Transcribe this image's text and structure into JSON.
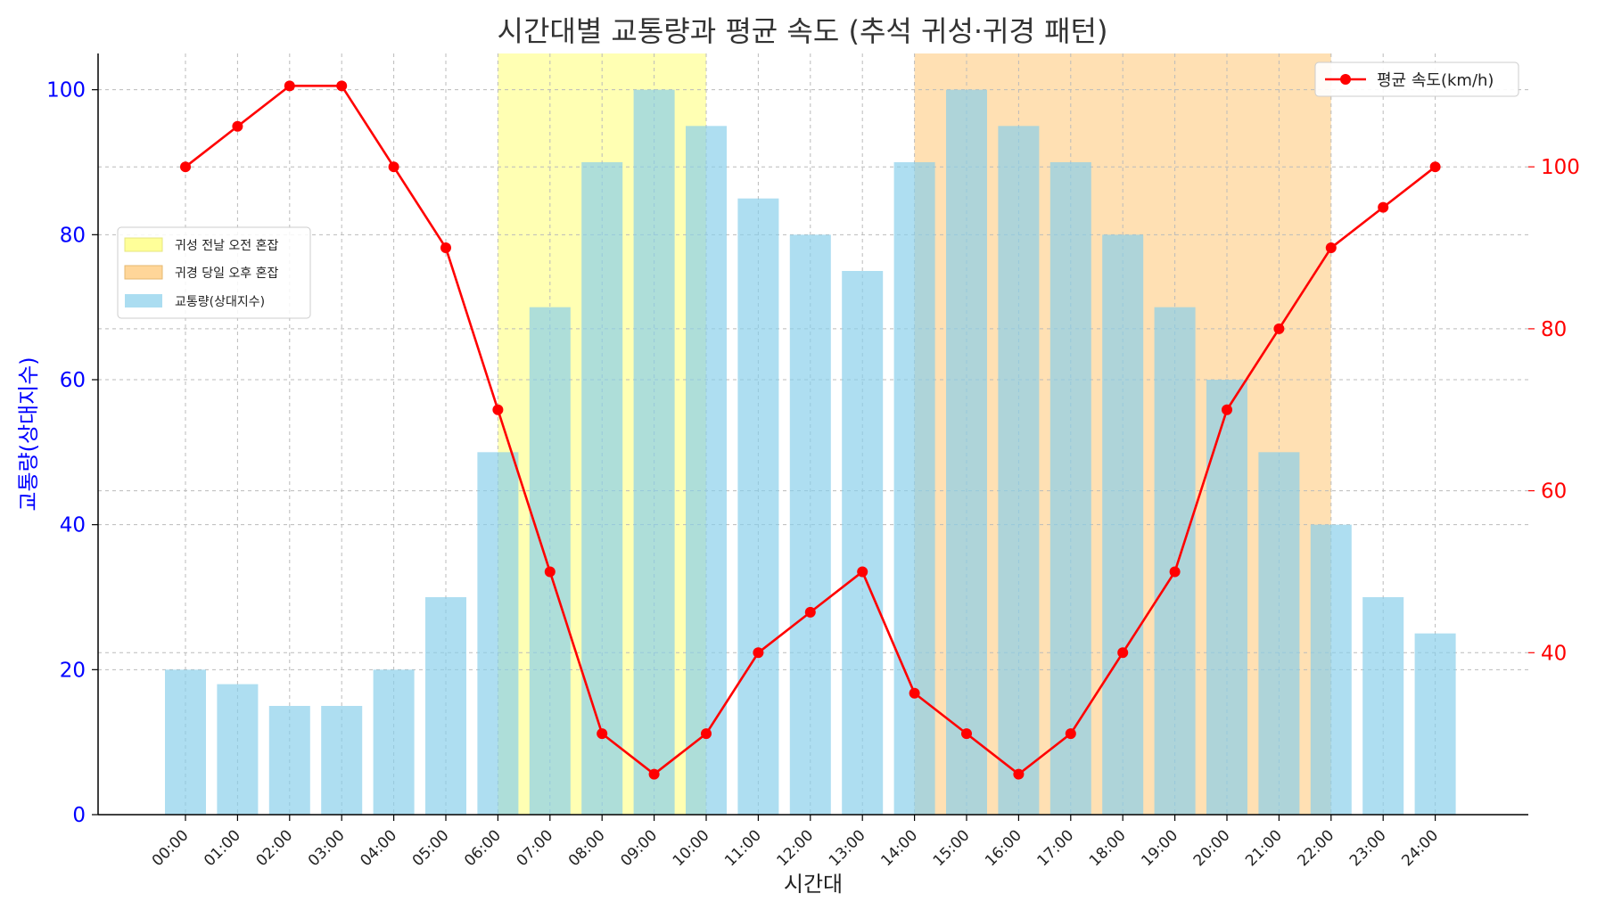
{
  "chart_data": {
    "type": "bar",
    "title": "시간대별 교통량과 평균 속도 (추석 귀성·귀경 패턴)",
    "xlabel": "시간대",
    "ylabel": "교통량(상대지수)",
    "y2label": "",
    "categories": [
      "00:00",
      "01:00",
      "02:00",
      "03:00",
      "04:00",
      "05:00",
      "06:00",
      "07:00",
      "08:00",
      "09:00",
      "10:00",
      "11:00",
      "12:00",
      "13:00",
      "14:00",
      "15:00",
      "16:00",
      "17:00",
      "18:00",
      "19:00",
      "20:00",
      "21:00",
      "22:00",
      "23:00",
      "24:00"
    ],
    "ylim": [
      0,
      105
    ],
    "y2lim": [
      20,
      114
    ],
    "yticks": [
      0,
      20,
      40,
      60,
      80,
      100
    ],
    "y2ticks": [
      40,
      60,
      80,
      100
    ],
    "grid": true,
    "series": [
      {
        "name": "교통량(상대지수)",
        "type": "bar",
        "axis": "left",
        "color": "#87ceeb",
        "values": [
          20,
          18,
          15,
          15,
          20,
          30,
          50,
          70,
          90,
          100,
          95,
          85,
          80,
          75,
          90,
          100,
          95,
          90,
          80,
          70,
          60,
          50,
          40,
          30,
          25
        ]
      },
      {
        "name": "평균 속도(km/h)",
        "type": "line",
        "axis": "right",
        "color": "#ff0000",
        "values": [
          100,
          105,
          110,
          110,
          100,
          90,
          70,
          50,
          30,
          25,
          30,
          40,
          45,
          50,
          35,
          30,
          25,
          30,
          40,
          50,
          70,
          80,
          90,
          95,
          100
        ]
      }
    ],
    "shaded_regions": [
      {
        "name": "귀성 전날 오전 혼잡",
        "from": "06:00",
        "to": "10:00",
        "color": "#ffff99"
      },
      {
        "name": "귀경 당일 오후 혼잡",
        "from": "14:00",
        "to": "22:00",
        "color": "#ffd699"
      }
    ],
    "legend_left": {
      "placement": "center-left",
      "entries": [
        "귀성 전날 오전 혼잡",
        "귀경 당일 오후 혼잡",
        "교통량(상대지수)"
      ]
    },
    "legend_right": {
      "placement": "top-right",
      "entries": [
        "평균 속도(km/h)"
      ]
    },
    "colors": {
      "left_axis": "#0000ff",
      "right_axis": "#ff0000",
      "title": "#333333"
    }
  }
}
